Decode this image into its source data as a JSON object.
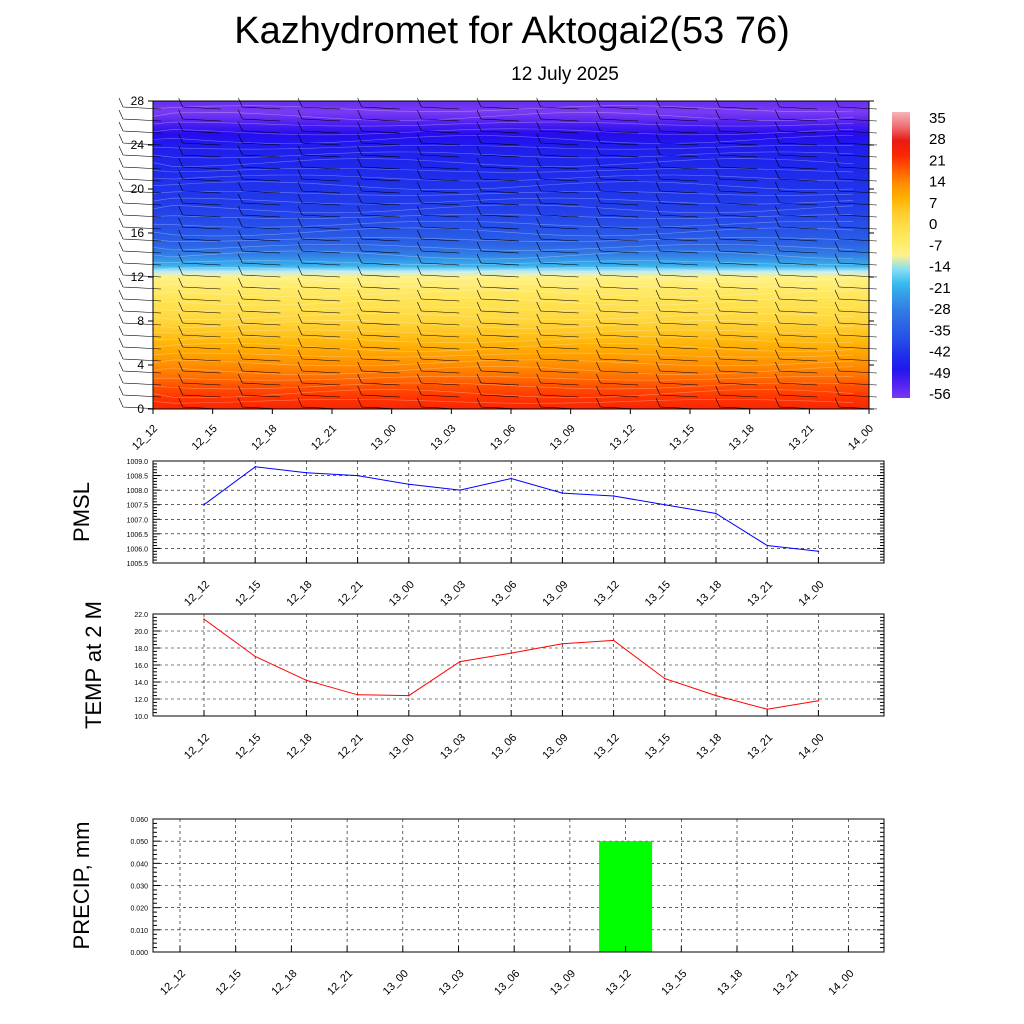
{
  "title": "Kazhydromet for Aktogai2(53 76)",
  "subtitle": "12 July 2025",
  "chart_data": [
    {
      "type": "heatmap",
      "panel": "vertical-temperature-section",
      "x_ticks": [
        "12_12",
        "12_15",
        "12_18",
        "12_21",
        "13_00",
        "13_03",
        "13_06",
        "13_09",
        "13_12",
        "13_15",
        "13_18",
        "13_21",
        "14_00"
      ],
      "y_ticks": [
        0,
        4,
        8,
        12,
        16,
        20,
        24,
        28
      ],
      "ylim": [
        0,
        28
      ],
      "colorbar_labels": [
        35,
        28,
        21,
        14,
        7,
        0,
        -7,
        -14,
        -21,
        -28,
        -35,
        -42,
        -49,
        -56
      ],
      "levels": [
        0,
        1,
        2,
        3,
        4,
        5,
        6,
        7,
        8,
        9,
        10,
        11,
        12,
        12.5,
        13,
        14,
        15,
        16,
        17,
        18,
        19,
        20,
        21,
        22,
        23,
        24,
        25,
        26,
        27,
        28
      ],
      "temperatures": [
        22,
        20,
        18,
        15,
        12,
        9,
        6,
        3,
        0,
        -3,
        -6,
        -9,
        -12,
        -16,
        -24,
        -32,
        -38,
        -41,
        -43,
        -45,
        -46,
        -47,
        -48,
        -49,
        -50,
        -52,
        -55,
        -58,
        -60,
        -59
      ],
      "wind_barbs": true,
      "colors": {
        "warm": "#ff2a00",
        "orange": "#ff9a00",
        "yellow": "#ffee66",
        "cyan": "#3fc8f0",
        "blue": "#2e63e8",
        "deep": "#1a10ee"
      }
    },
    {
      "type": "line",
      "ylabel": "PMSL",
      "categories": [
        "12_12",
        "12_15",
        "12_18",
        "12_21",
        "13_00",
        "13_03",
        "13_06",
        "13_09",
        "13_12",
        "13_15",
        "13_18",
        "13_21",
        "14_00"
      ],
      "values": [
        1007.5,
        1008.8,
        1008.6,
        1008.5,
        1008.2,
        1008.0,
        1008.4,
        1007.9,
        1007.8,
        1007.5,
        1007.2,
        1006.1,
        1005.9
      ],
      "ylim": [
        1005.5,
        1009.0
      ],
      "y_ticks": [
        "1005.5",
        "1006.0",
        "1006.5",
        "1007.0",
        "1007.5",
        "1008.0",
        "1008.5",
        "1009.0"
      ],
      "color": "#0000ff",
      "grid": true
    },
    {
      "type": "line",
      "ylabel": "TEMP at 2 M",
      "categories": [
        "12_12",
        "12_15",
        "12_18",
        "12_21",
        "13_00",
        "13_03",
        "13_06",
        "13_09",
        "13_12",
        "13_15",
        "13_18",
        "13_21",
        "14_00"
      ],
      "values": [
        21.4,
        17.0,
        14.2,
        12.5,
        12.4,
        16.4,
        17.4,
        18.5,
        18.9,
        14.4,
        12.4,
        10.8,
        11.8
      ],
      "ylim": [
        10.0,
        22.0
      ],
      "y_ticks": [
        "10.0",
        "12.0",
        "14.0",
        "16.0",
        "18.0",
        "20.0",
        "22.0"
      ],
      "color": "#ff0000",
      "grid": true
    },
    {
      "type": "bar",
      "ylabel": "PRECIP, mm",
      "categories": [
        "12_12",
        "12_15",
        "12_18",
        "12_21",
        "13_00",
        "13_03",
        "13_06",
        "13_09",
        "13_12",
        "13_15",
        "13_18",
        "13_21",
        "14_00"
      ],
      "values": [
        0,
        0,
        0,
        0,
        0,
        0,
        0,
        0,
        0.05,
        0,
        0,
        0,
        0
      ],
      "ylim": [
        0,
        0.06
      ],
      "y_ticks": [
        "0.000",
        "0.010",
        "0.020",
        "0.030",
        "0.040",
        "0.050",
        "0.060"
      ],
      "color": "#00ff00",
      "grid": true
    }
  ]
}
